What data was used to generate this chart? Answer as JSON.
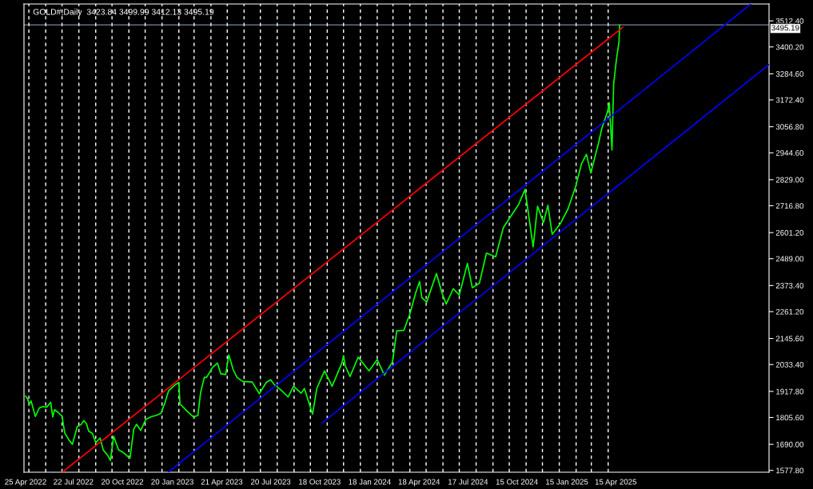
{
  "chart_data": {
    "type": "line",
    "title": "GOLD#,Daily  3423.84 3499.99 3412.13 3495.19",
    "x": [
      "2022-04-25",
      "2022-04-28",
      "2022-05-02",
      "2022-05-05",
      "2022-05-13",
      "2022-05-20",
      "2022-05-27",
      "2022-06-03",
      "2022-06-10",
      "2022-06-14",
      "2022-06-17",
      "2022-06-24",
      "2022-07-01",
      "2022-07-06",
      "2022-07-14",
      "2022-07-20",
      "2022-07-29",
      "2022-08-05",
      "2022-08-10",
      "2022-08-15",
      "2022-08-19",
      "2022-08-26",
      "2022-09-01",
      "2022-09-09",
      "2022-09-15",
      "2022-09-23",
      "2022-09-28",
      "2022-10-04",
      "2022-10-13",
      "2022-10-21",
      "2022-11-03",
      "2022-11-10",
      "2022-11-15",
      "2022-11-23",
      "2022-12-02",
      "2022-12-13",
      "2022-12-21",
      "2022-12-30",
      "2023-01-06",
      "2023-01-13",
      "2023-01-25",
      "2023-02-01",
      "2023-02-03",
      "2023-02-15",
      "2023-02-28",
      "2023-03-08",
      "2023-03-13",
      "2023-03-20",
      "2023-03-24",
      "2023-04-04",
      "2023-04-13",
      "2023-04-19",
      "2023-04-28",
      "2023-05-04",
      "2023-05-12",
      "2023-05-19",
      "2023-05-30",
      "2023-06-05",
      "2023-06-16",
      "2023-06-29",
      "2023-07-12",
      "2023-07-20",
      "2023-07-27",
      "2023-08-08",
      "2023-08-21",
      "2023-08-31",
      "2023-09-14",
      "2023-09-20",
      "2023-10-05",
      "2023-10-13",
      "2023-10-27",
      "2023-11-10",
      "2023-11-28",
      "2023-12-01",
      "2023-12-04",
      "2023-12-13",
      "2023-12-28",
      "2024-01-17",
      "2024-02-01",
      "2024-02-14",
      "2024-02-29",
      "2024-03-08",
      "2024-03-21",
      "2024-04-01",
      "2024-04-12",
      "2024-04-19",
      "2024-04-23",
      "2024-05-02",
      "2024-05-20",
      "2024-05-30",
      "2024-06-07",
      "2024-06-20",
      "2024-07-01",
      "2024-07-16",
      "2024-07-25",
      "2024-08-07",
      "2024-08-20",
      "2024-09-06",
      "2024-09-20",
      "2024-10-01",
      "2024-10-18",
      "2024-10-30",
      "2024-11-14",
      "2024-11-22",
      "2024-12-03",
      "2024-12-11",
      "2024-12-19",
      "2025-01-03",
      "2025-01-17",
      "2025-01-31",
      "2025-02-11",
      "2025-02-20",
      "2025-02-28",
      "2025-03-14",
      "2025-03-20",
      "2025-03-31",
      "2025-04-03",
      "2025-04-08",
      "2025-04-11",
      "2025-04-16",
      "2025-04-21",
      "2025-04-22"
    ],
    "series": [
      {
        "color": "#00ff00",
        "values": [
          1898,
          1888,
          1863,
          1877,
          1810,
          1846,
          1853,
          1850,
          1871,
          1808,
          1839,
          1827,
          1811,
          1739,
          1708,
          1690,
          1766,
          1775,
          1792,
          1779,
          1747,
          1737,
          1697,
          1717,
          1665,
          1643,
          1620,
          1725,
          1666,
          1656,
          1630,
          1755,
          1776,
          1750,
          1797,
          1810,
          1814,
          1824,
          1866,
          1920,
          1946,
          1956,
          1865,
          1835,
          1808,
          1814,
          1913,
          1979,
          1978,
          2021,
          2040,
          1994,
          1990,
          2075,
          2011,
          1978,
          1960,
          1960,
          1958,
          1908,
          1957,
          1968,
          1946,
          1924,
          1894,
          1940,
          1910,
          1930,
          1820,
          1932,
          2006,
          1940,
          2040,
          2072,
          2029,
          1982,
          2065,
          2006,
          2055,
          1988,
          2044,
          2178,
          2181,
          2250,
          2344,
          2391,
          2322,
          2302,
          2425,
          2343,
          2294,
          2360,
          2332,
          2469,
          2364,
          2383,
          2513,
          2497,
          2622,
          2662,
          2721,
          2787,
          2540,
          2715,
          2644,
          2719,
          2594,
          2640,
          2703,
          2798,
          2898,
          2938,
          2858,
          2984,
          3047,
          3124,
          3160,
          2957,
          3237,
          3343,
          3424,
          3495
        ]
      },
      {
        "color": "#ff0000",
        "x": [
          "2022-07-02",
          "2025-04-28"
        ],
        "values": [
          1571,
          3485
        ]
      },
      {
        "color": "#0000ff",
        "x": [
          "2023-01-13",
          "2025-12-19"
        ],
        "values": [
          1571,
          3584
        ]
      },
      {
        "color": "#0000ff",
        "x": [
          "2023-10-22",
          "2026-01-22"
        ],
        "values": [
          1781,
          3325
        ]
      }
    ],
    "xlim": [
      "2022-04-22",
      "2026-01-22"
    ],
    "xticks": [
      {
        "value": "2022-04-25",
        "label": "25 Apr 2022"
      },
      {
        "value": "2022-07-22",
        "label": "22 Jul 2022"
      },
      {
        "value": "2022-10-20",
        "label": "20 Oct 2022"
      },
      {
        "value": "2023-01-20",
        "label": "20 Jan 2023"
      },
      {
        "value": "2023-04-21",
        "label": "21 Apr 2023"
      },
      {
        "value": "2023-07-20",
        "label": "20 Jul 2023"
      },
      {
        "value": "2023-10-18",
        "label": "18 Oct 2023"
      },
      {
        "value": "2024-01-18",
        "label": "18 Jan 2024"
      },
      {
        "value": "2024-04-18",
        "label": "18 Apr 2024"
      },
      {
        "value": "2024-07-17",
        "label": "17 Jul 2024"
      },
      {
        "value": "2024-10-15",
        "label": "15 Oct 2024"
      },
      {
        "value": "2025-01-15",
        "label": "15 Jan 2025"
      },
      {
        "value": "2025-04-15",
        "label": "15 Apr 2025"
      }
    ],
    "ylim": [
      1570,
      3585
    ],
    "yticks": [
      {
        "value": 1577.8,
        "label": "1577.80"
      },
      {
        "value": 1690,
        "label": "1690.00"
      },
      {
        "value": 1805.6,
        "label": "1805.60"
      },
      {
        "value": 1917.8,
        "label": "1917.80"
      },
      {
        "value": 2033.4,
        "label": "2033.40"
      },
      {
        "value": 2145.6,
        "label": "2145.60"
      },
      {
        "value": 2261.2,
        "label": "2261.20"
      },
      {
        "value": 2373.4,
        "label": "2373.40"
      },
      {
        "value": 2489,
        "label": "2489.00"
      },
      {
        "value": 2601.2,
        "label": "2601.20"
      },
      {
        "value": 2716.8,
        "label": "2716.80"
      },
      {
        "value": 2829,
        "label": "2829.00"
      },
      {
        "value": 2944.6,
        "label": "2944.60"
      },
      {
        "value": 3056.8,
        "label": "3056.80"
      },
      {
        "value": 3172.4,
        "label": "3172.40"
      },
      {
        "value": 3284.6,
        "label": "3284.60"
      },
      {
        "value": 3400.2,
        "label": "3400.20"
      },
      {
        "value": 3512.4,
        "label": "3512.40"
      }
    ],
    "ref_lines": [
      {
        "axis": "y",
        "value": 3495.19,
        "label": "3495.19",
        "color": "#778899",
        "line_style": "solid"
      },
      {
        "axis": "x",
        "value": "2022-05-01",
        "color": "#ffffff",
        "line_style": "dashed"
      },
      {
        "axis": "x",
        "value": "2022-06-01",
        "color": "#ffffff",
        "line_style": "dashed"
      },
      {
        "axis": "x",
        "value": "2022-07-01",
        "color": "#ffffff",
        "line_style": "dashed"
      },
      {
        "axis": "x",
        "value": "2022-08-01",
        "color": "#ffffff",
        "line_style": "dashed"
      },
      {
        "axis": "x",
        "value": "2022-09-01",
        "color": "#ffffff",
        "line_style": "dashed"
      },
      {
        "axis": "x",
        "value": "2022-10-01",
        "color": "#ffffff",
        "line_style": "dashed"
      },
      {
        "axis": "x",
        "value": "2022-11-01",
        "color": "#ffffff",
        "line_style": "dashed"
      },
      {
        "axis": "x",
        "value": "2022-12-01",
        "color": "#ffffff",
        "line_style": "dashed"
      },
      {
        "axis": "x",
        "value": "2023-01-01",
        "color": "#ffffff",
        "line_style": "dashed"
      },
      {
        "axis": "x",
        "value": "2023-02-01",
        "color": "#ffffff",
        "line_style": "dashed"
      },
      {
        "axis": "x",
        "value": "2023-03-01",
        "color": "#ffffff",
        "line_style": "dashed"
      },
      {
        "axis": "x",
        "value": "2023-04-01",
        "color": "#ffffff",
        "line_style": "dashed"
      },
      {
        "axis": "x",
        "value": "2023-05-01",
        "color": "#ffffff",
        "line_style": "dashed"
      },
      {
        "axis": "x",
        "value": "2023-06-01",
        "color": "#ffffff",
        "line_style": "dashed"
      },
      {
        "axis": "x",
        "value": "2023-07-01",
        "color": "#ffffff",
        "line_style": "dashed"
      },
      {
        "axis": "x",
        "value": "2023-08-01",
        "color": "#ffffff",
        "line_style": "dashed"
      },
      {
        "axis": "x",
        "value": "2023-09-01",
        "color": "#ffffff",
        "line_style": "dashed"
      },
      {
        "axis": "x",
        "value": "2023-10-01",
        "color": "#ffffff",
        "line_style": "dashed"
      },
      {
        "axis": "x",
        "value": "2023-11-01",
        "color": "#ffffff",
        "line_style": "dashed"
      },
      {
        "axis": "x",
        "value": "2023-12-01",
        "color": "#ffffff",
        "line_style": "dashed"
      },
      {
        "axis": "x",
        "value": "2024-01-01",
        "color": "#ffffff",
        "line_style": "dashed"
      },
      {
        "axis": "x",
        "value": "2024-02-01",
        "color": "#ffffff",
        "line_style": "dashed"
      },
      {
        "axis": "x",
        "value": "2024-03-01",
        "color": "#ffffff",
        "line_style": "dashed"
      },
      {
        "axis": "x",
        "value": "2024-04-01",
        "color": "#ffffff",
        "line_style": "dashed"
      },
      {
        "axis": "x",
        "value": "2024-05-01",
        "color": "#ffffff",
        "line_style": "dashed"
      },
      {
        "axis": "x",
        "value": "2024-06-01",
        "color": "#ffffff",
        "line_style": "dashed"
      },
      {
        "axis": "x",
        "value": "2024-07-01",
        "color": "#ffffff",
        "line_style": "dashed"
      },
      {
        "axis": "x",
        "value": "2024-08-01",
        "color": "#ffffff",
        "line_style": "dashed"
      },
      {
        "axis": "x",
        "value": "2024-09-01",
        "color": "#ffffff",
        "line_style": "dashed"
      },
      {
        "axis": "x",
        "value": "2024-10-01",
        "color": "#ffffff",
        "line_style": "dashed"
      },
      {
        "axis": "x",
        "value": "2024-11-01",
        "color": "#ffffff",
        "line_style": "dashed"
      },
      {
        "axis": "x",
        "value": "2024-12-01",
        "color": "#ffffff",
        "line_style": "dashed"
      },
      {
        "axis": "x",
        "value": "2025-01-01",
        "color": "#ffffff",
        "line_style": "dashed"
      },
      {
        "axis": "x",
        "value": "2025-02-01",
        "color": "#ffffff",
        "line_style": "dashed"
      },
      {
        "axis": "x",
        "value": "2025-03-01",
        "color": "#ffffff",
        "line_style": "dashed"
      },
      {
        "axis": "x",
        "value": "2025-04-01",
        "color": "#ffffff",
        "line_style": "dashed"
      }
    ]
  }
}
